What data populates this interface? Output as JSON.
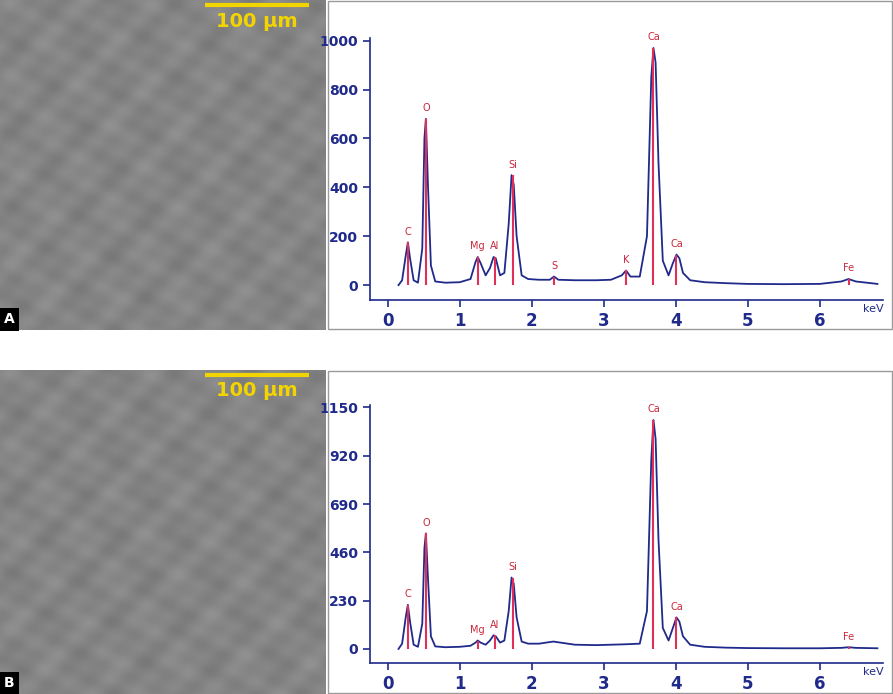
{
  "chart_data": [
    {
      "type": "line",
      "x_label": "keV",
      "color": "#1f2a8a",
      "xlim": [
        -0.25,
        6.88
      ],
      "xticks": [
        0,
        1,
        2,
        3,
        4,
        5,
        6
      ],
      "ylim": [
        -60,
        1010
      ],
      "yticks": [
        0,
        200,
        400,
        600,
        800,
        1000
      ],
      "x": [
        0.15,
        0.2,
        0.25,
        0.28,
        0.31,
        0.36,
        0.42,
        0.48,
        0.51,
        0.53,
        0.56,
        0.6,
        0.66,
        0.8,
        1.0,
        1.15,
        1.22,
        1.25,
        1.29,
        1.36,
        1.42,
        1.47,
        1.5,
        1.56,
        1.62,
        1.68,
        1.72,
        1.75,
        1.79,
        1.86,
        1.95,
        2.1,
        2.25,
        2.31,
        2.37,
        2.6,
        2.9,
        3.1,
        3.25,
        3.31,
        3.37,
        3.5,
        3.6,
        3.66,
        3.69,
        3.72,
        3.76,
        3.82,
        3.9,
        3.96,
        4.01,
        4.05,
        4.1,
        4.2,
        4.4,
        4.7,
        5.0,
        5.5,
        6.0,
        6.3,
        6.4,
        6.5,
        6.8
      ],
      "values": [
        0,
        20,
        120,
        175,
        110,
        20,
        10,
        150,
        600,
        680,
        400,
        80,
        15,
        10,
        12,
        25,
        95,
        115,
        90,
        40,
        70,
        115,
        110,
        40,
        50,
        250,
        450,
        410,
        200,
        40,
        25,
        22,
        22,
        35,
        22,
        20,
        20,
        22,
        40,
        60,
        35,
        35,
        200,
        850,
        970,
        910,
        500,
        100,
        40,
        90,
        125,
        110,
        50,
        20,
        12,
        8,
        5,
        4,
        5,
        15,
        25,
        15,
        5
      ],
      "annotations": [
        {
          "text": "C",
          "x": 0.28,
          "y": 175
        },
        {
          "text": "O",
          "x": 0.53,
          "y": 680
        },
        {
          "text": "Mg",
          "x": 1.25,
          "y": 115
        },
        {
          "text": "Al",
          "x": 1.49,
          "y": 115
        },
        {
          "text": "Si",
          "x": 1.74,
          "y": 450
        },
        {
          "text": "S",
          "x": 2.31,
          "y": 35
        },
        {
          "text": "K",
          "x": 3.31,
          "y": 60
        },
        {
          "text": "Ca",
          "x": 3.69,
          "y": 970
        },
        {
          "text": "Ca",
          "x": 4.01,
          "y": 125
        },
        {
          "text": "Fe",
          "x": 6.4,
          "y": 25
        }
      ]
    },
    {
      "type": "line",
      "x_label": "keV",
      "color": "#1f2a8a",
      "xlim": [
        -0.25,
        6.88
      ],
      "xticks": [
        0,
        1,
        2,
        3,
        4,
        5,
        6
      ],
      "ylim": [
        -66,
        1160
      ],
      "yticks": [
        0,
        230,
        460,
        690,
        920,
        1150
      ],
      "x": [
        0.15,
        0.2,
        0.25,
        0.28,
        0.31,
        0.36,
        0.42,
        0.48,
        0.51,
        0.53,
        0.56,
        0.6,
        0.66,
        0.8,
        1.0,
        1.15,
        1.22,
        1.25,
        1.29,
        1.36,
        1.42,
        1.47,
        1.5,
        1.56,
        1.62,
        1.68,
        1.72,
        1.75,
        1.79,
        1.86,
        1.95,
        2.1,
        2.3,
        2.6,
        2.9,
        3.1,
        3.3,
        3.5,
        3.6,
        3.66,
        3.69,
        3.72,
        3.76,
        3.82,
        3.9,
        3.96,
        4.01,
        4.05,
        4.1,
        4.2,
        4.4,
        4.7,
        5.0,
        5.5,
        6.0,
        6.3,
        6.4,
        6.5,
        6.8
      ],
      "values": [
        0,
        25,
        150,
        210,
        130,
        20,
        10,
        120,
        480,
        550,
        330,
        60,
        12,
        8,
        10,
        15,
        30,
        40,
        30,
        20,
        40,
        65,
        60,
        30,
        40,
        180,
        340,
        310,
        150,
        35,
        25,
        25,
        35,
        20,
        18,
        20,
        22,
        25,
        180,
        900,
        1090,
        1000,
        520,
        100,
        40,
        100,
        150,
        130,
        60,
        20,
        10,
        6,
        4,
        3,
        3,
        5,
        8,
        5,
        3
      ],
      "annotations": [
        {
          "text": "C",
          "x": 0.28,
          "y": 210
        },
        {
          "text": "O",
          "x": 0.53,
          "y": 550
        },
        {
          "text": "Mg",
          "x": 1.25,
          "y": 40
        },
        {
          "text": "Al",
          "x": 1.49,
          "y": 65
        },
        {
          "text": "Si",
          "x": 1.74,
          "y": 340
        },
        {
          "text": "Ca",
          "x": 3.69,
          "y": 1090
        },
        {
          "text": "Ca",
          "x": 4.01,
          "y": 150
        },
        {
          "text": "Fe",
          "x": 6.4,
          "y": 8
        }
      ]
    }
  ],
  "panels": [
    {
      "label": "A",
      "scale_bar": "100 µm"
    },
    {
      "label": "B",
      "scale_bar": "100 µm"
    }
  ]
}
